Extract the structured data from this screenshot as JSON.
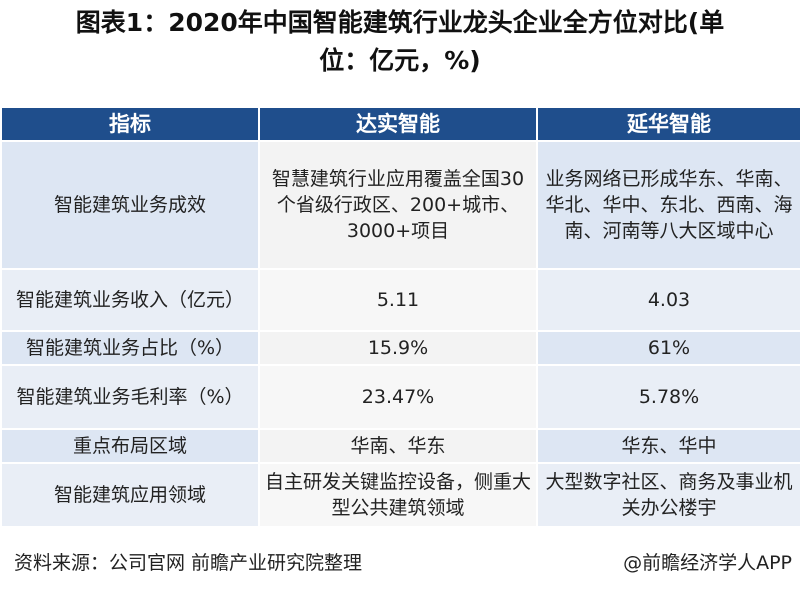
{
  "title": {
    "line1": "图表1：2020年中国智能建筑行业龙头企业全方位对比(单",
    "line2": "位：亿元，%)"
  },
  "table": {
    "headers": [
      "指标",
      "达实智能",
      "延华智能"
    ],
    "rows": [
      {
        "label": "智能建筑业务成效",
        "a": "智慧建筑行业应用覆盖全国30个省级行政区、200+城市、3000+项目",
        "b": "业务网络已形成华东、华南、华北、华中、东北、西南、海南、河南等八大区域中心"
      },
      {
        "label": "智能建筑业务收入（亿元）",
        "a": "5.11",
        "b": "4.03"
      },
      {
        "label": "智能建筑业务占比（%）",
        "a": "15.9%",
        "b": "61%"
      },
      {
        "label": "智能建筑业务毛利率（%）",
        "a": "23.47%",
        "b": "5.78%"
      },
      {
        "label": "重点布局区域",
        "a": "华南、华东",
        "b": "华东、华中"
      },
      {
        "label": "智能建筑应用领域",
        "a": "自主研发关键监控设备，侧重大型公共建筑领域",
        "b": "大型数字社区、商务及事业机关办公楼宇"
      }
    ]
  },
  "footer": {
    "source": "资料来源：公司官网 前瞻产业研究院整理",
    "brand": "@前瞻经济学人APP"
  },
  "colors": {
    "header_bg": "#1f4e8c",
    "row_bg_blue": "#dde6f3",
    "row_bg_gray": "#f3f3f3"
  }
}
